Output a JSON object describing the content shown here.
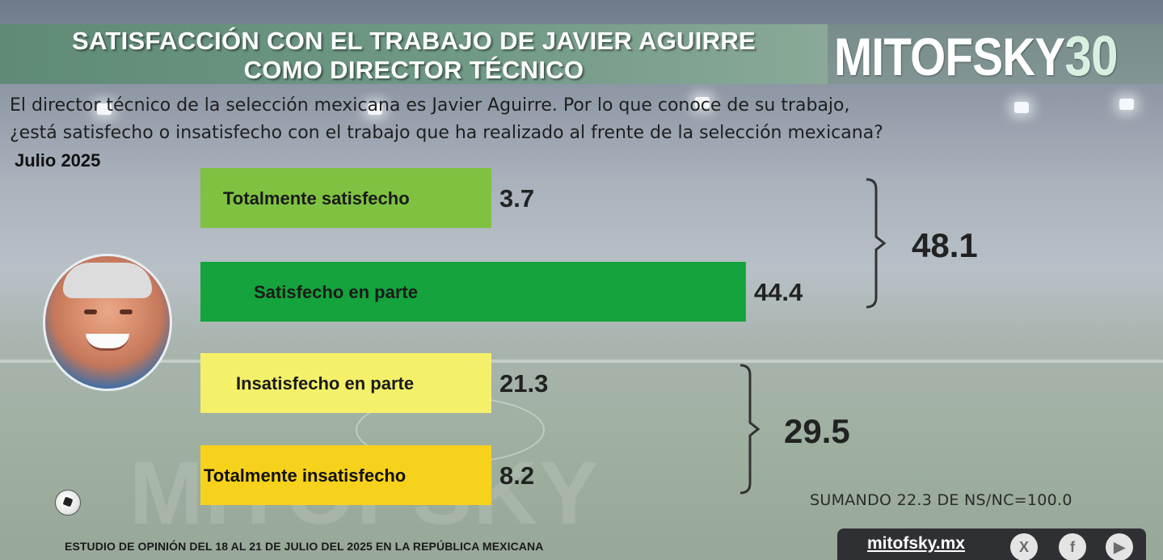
{
  "header": {
    "title_line1": "SATISFACCIÓN CON EL TRABAJO DE JAVIER AGUIRRE",
    "title_line2": "COMO DIRECTOR TÉCNICO",
    "logo_text": "MITOFSKY",
    "logo_badge": "30"
  },
  "question_line1": "El director técnico de la selección mexicana es Javier Aguirre. Por lo que conoce de su trabajo,",
  "question_line2": "¿está satisfecho o insatisfecho con el trabajo que ha realizado al frente de la selección mexicana?",
  "period": "Julio 2025",
  "chart_data": {
    "type": "bar",
    "orientation": "horizontal",
    "categories": [
      "Totalmente satisfecho",
      "Satisfecho en parte",
      "Insatisfecho en parte",
      "Totalmente insatisfecho"
    ],
    "values": [
      3.7,
      44.4,
      21.3,
      8.2
    ],
    "value_labels": [
      "3.7",
      "44.4",
      "21.3",
      "8.2"
    ],
    "colors": [
      "#7fc241",
      "#14a33c",
      "#f4f06a",
      "#f7d21c"
    ],
    "groups": [
      {
        "label": "48.1",
        "value": 48.1,
        "members": [
          0,
          1
        ]
      },
      {
        "label": "29.5",
        "value": 29.5,
        "members": [
          2,
          3
        ]
      }
    ],
    "xlim": [
      0,
      50
    ],
    "grid": false
  },
  "note": "SUMANDO 22.3 DE NS/NC=100.0",
  "footer": "ESTUDIO DE OPINIÓN DEL 18 AL 21 DE JULIO DEL 2025 EN LA REPÚBLICA MEXICANA",
  "social": {
    "site": "mitofsky.mx",
    "icons": [
      "x-icon",
      "facebook-icon",
      "youtube-icon"
    ],
    "icon_glyphs": [
      "X",
      "f",
      "▶"
    ]
  },
  "watermark": "MITOFSKY"
}
